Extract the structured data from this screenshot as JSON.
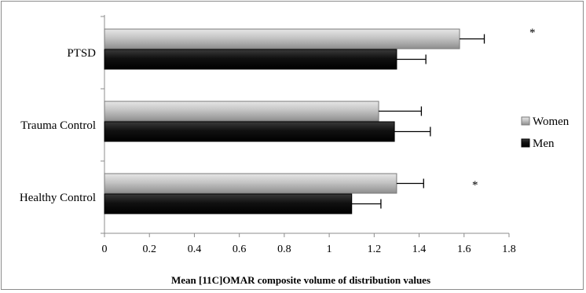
{
  "chart_data": {
    "type": "bar",
    "orientation": "horizontal",
    "categories": [
      "PTSD",
      "Trauma Control",
      "Healthy Control"
    ],
    "series": [
      {
        "name": "Women",
        "values": [
          1.58,
          1.22,
          1.3
        ],
        "error": [
          0.11,
          0.19,
          0.12
        ],
        "color": "#b3b3b3"
      },
      {
        "name": "Men",
        "values": [
          1.3,
          1.29,
          1.1
        ],
        "error": [
          0.13,
          0.16,
          0.13
        ],
        "color": "#111111"
      }
    ],
    "xlabel": "Mean [11C]OMAR composite volume of distribution values",
    "xlim": [
      0,
      1.8
    ],
    "xticks": [
      "0",
      "0.2",
      "0.4",
      "0.6",
      "0.8",
      "1",
      "1.2",
      "1.4",
      "1.6",
      "1.8"
    ],
    "annotations": [
      {
        "text": "*",
        "category": "PTSD"
      },
      {
        "text": "*",
        "category": "Healthy Control"
      }
    ],
    "legend_position": "right",
    "grid": false
  }
}
